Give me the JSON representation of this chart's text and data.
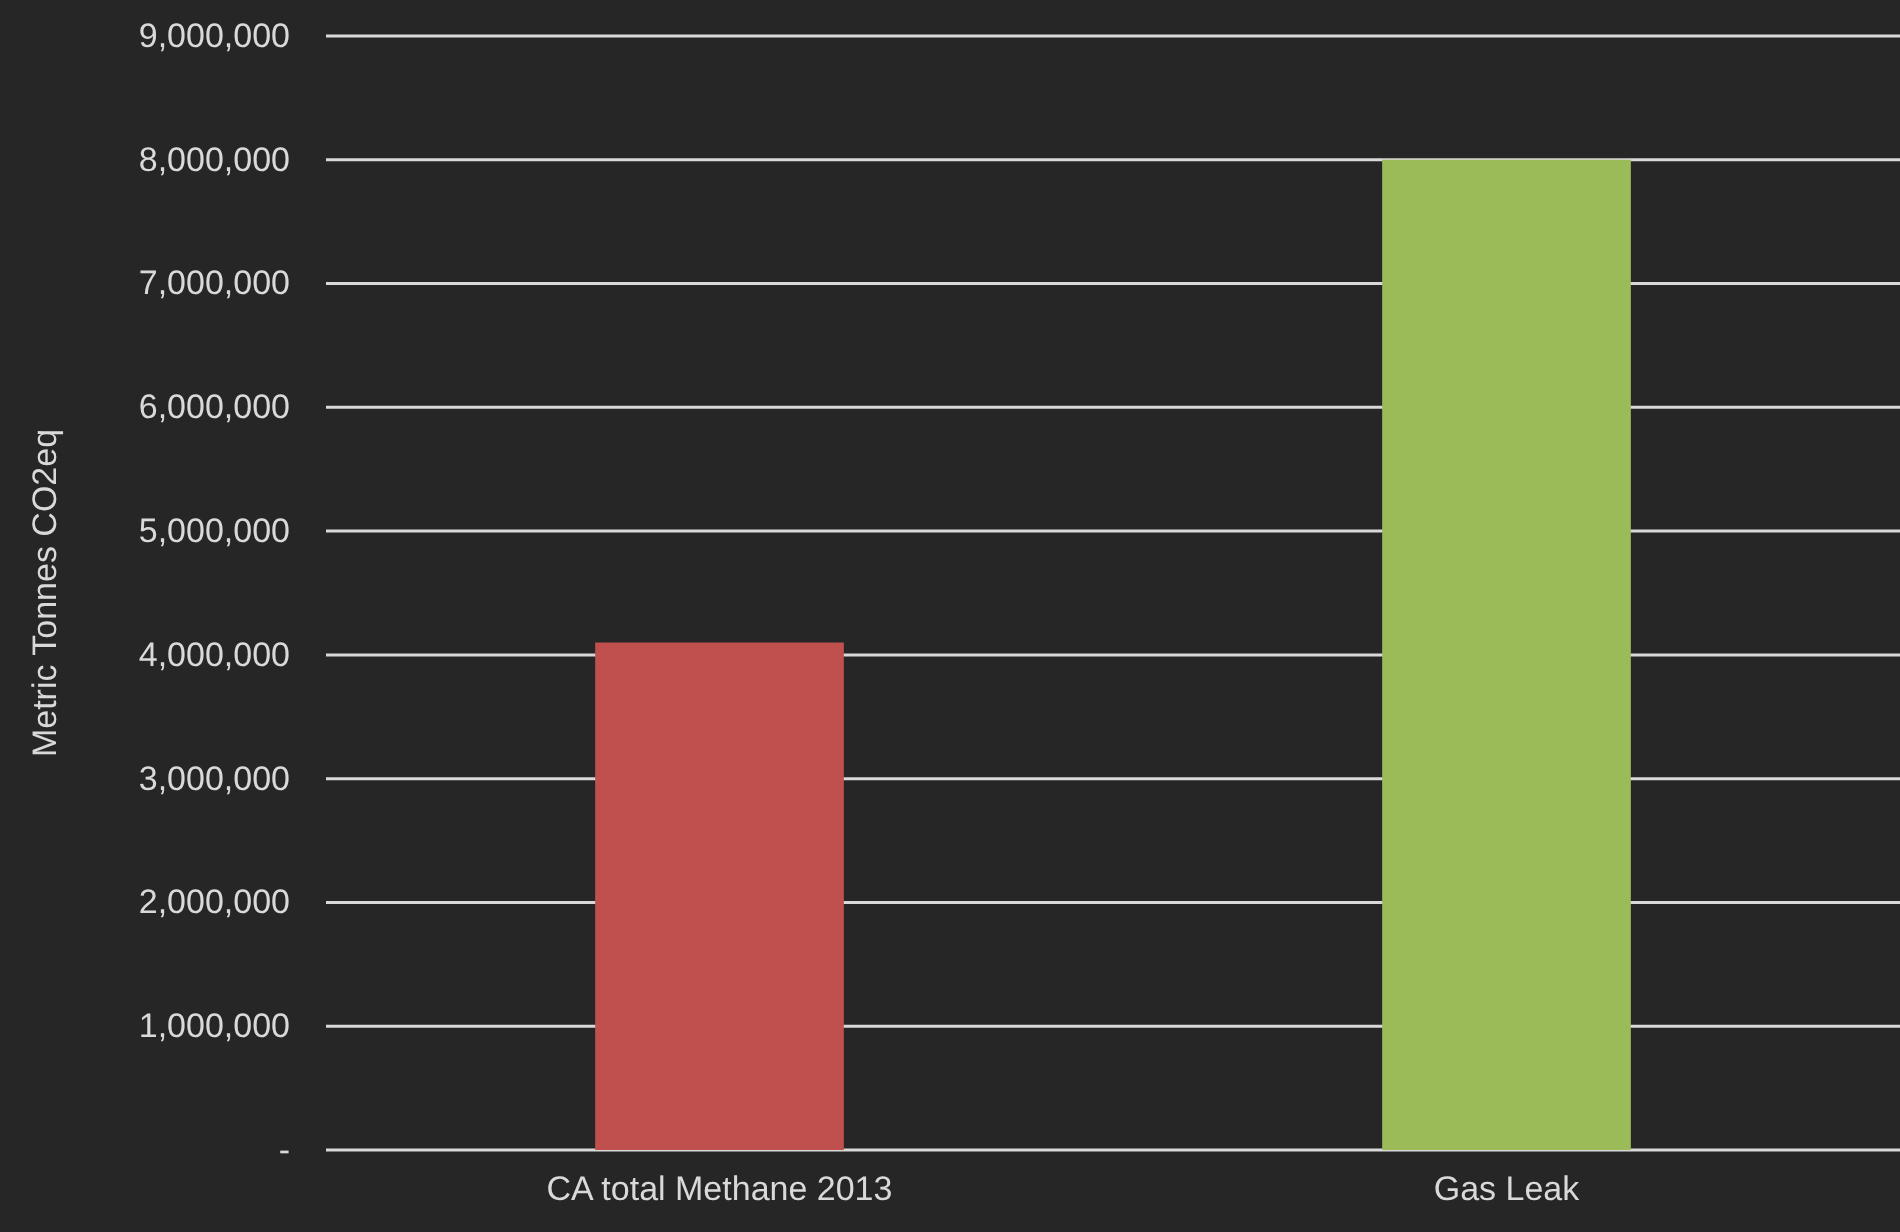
{
  "chart_data": {
    "type": "bar",
    "categories": [
      "CA total Methane 2013",
      "Gas Leak"
    ],
    "values": [
      4100000,
      8000000
    ],
    "colors": [
      "#c0504d",
      "#9bbb59"
    ],
    "ylabel": "Metric Tonnes CO2eq",
    "ylim": [
      0,
      9000000
    ],
    "yticks": [
      {
        "value": 0,
        "label": "-"
      },
      {
        "value": 1000000,
        "label": "1,000,000"
      },
      {
        "value": 2000000,
        "label": "2,000,000"
      },
      {
        "value": 3000000,
        "label": "3,000,000"
      },
      {
        "value": 4000000,
        "label": "4,000,000"
      },
      {
        "value": 5000000,
        "label": "5,000,000"
      },
      {
        "value": 6000000,
        "label": "6,000,000"
      },
      {
        "value": 7000000,
        "label": "7,000,000"
      },
      {
        "value": 8000000,
        "label": "8,000,000"
      },
      {
        "value": 9000000,
        "label": "9,000,000"
      }
    ],
    "grid": "y"
  }
}
